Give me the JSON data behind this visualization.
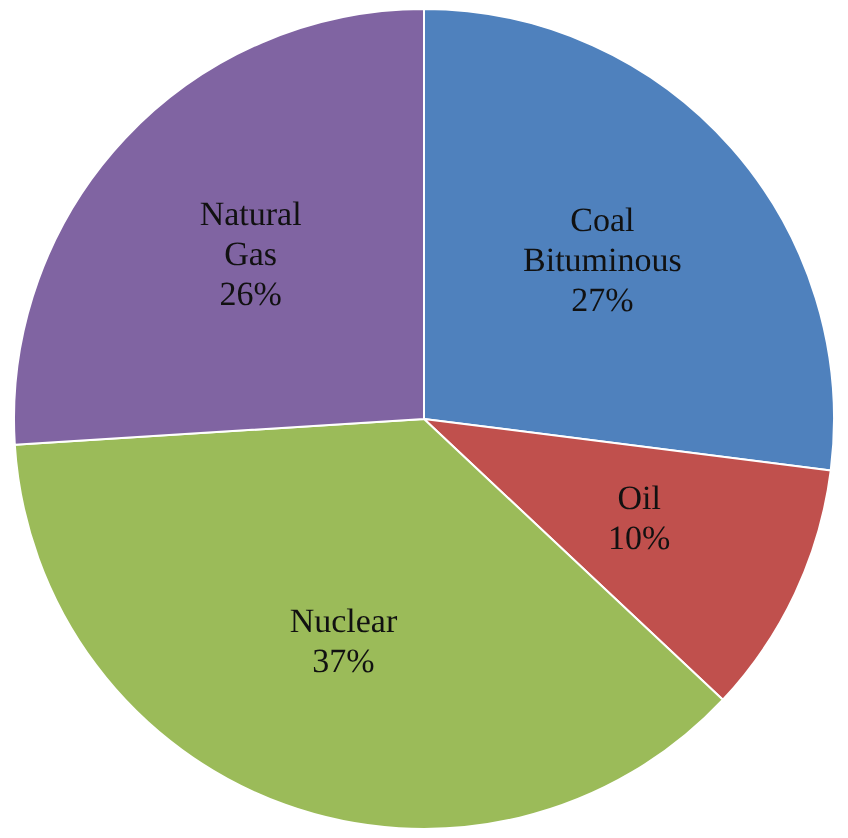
{
  "chart_data": {
    "type": "pie",
    "categories": [
      "Coal Bituminous",
      "Oil",
      "Nuclear",
      "Natural Gas"
    ],
    "values": [
      27,
      10,
      37,
      26
    ],
    "value_labels": [
      "27%",
      "10%",
      "37%",
      "26%"
    ],
    "colors": [
      "#4f81bd",
      "#c0504d",
      "#9bbb59",
      "#8064a2"
    ],
    "legend": false
  }
}
